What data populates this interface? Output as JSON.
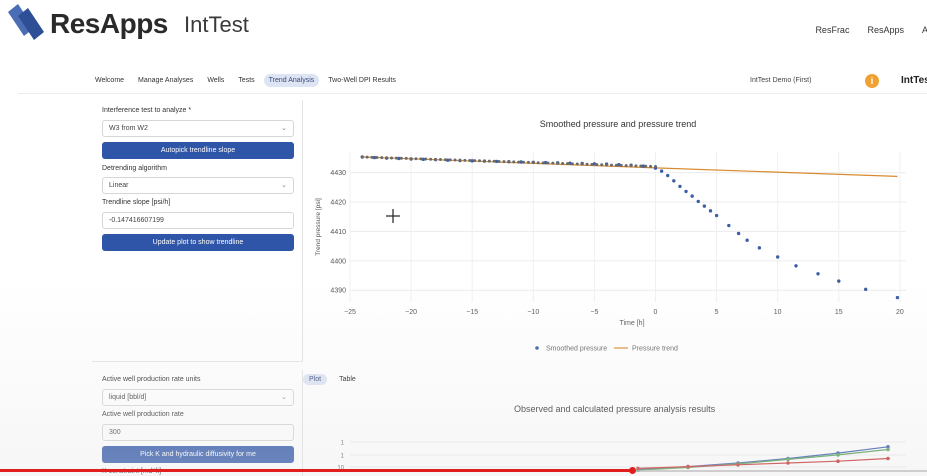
{
  "header": {
    "brand": "ResApps",
    "product": "IntTest",
    "links": [
      "ResFrac",
      "ResApps",
      "Ab"
    ]
  },
  "tabs": {
    "items": [
      "Welcome",
      "Manage Analyses",
      "Wells",
      "Tests",
      "Trend Analysis",
      "Two-Well DPI Results"
    ],
    "active_index": 4,
    "demo_label": "IntTest Demo (First)",
    "info_icon": "info-icon",
    "app_name": "IntTest"
  },
  "left_panel": {
    "test_label": "Interference test to analyze *",
    "test_value": "W3 from W2",
    "autopick_button": "Autopick trendline slope",
    "detrend_label": "Detrending algorithm",
    "detrend_value": "Linear",
    "slope_label": "Trendline slope [psi/h]",
    "slope_value": "-0.147416607199",
    "update_button": "Update plot to show trendline"
  },
  "bottom_panel": {
    "rate_units_label": "Active well production rate units",
    "rate_units_value": "liquid [bbl/d]",
    "rate_label": "Active well production rate",
    "rate_value": "300",
    "pick_button": "Pick K and hydraulic diffusivity for me",
    "cut_label": "K constraint [md*ft]",
    "tabs": [
      "Plot",
      "Table"
    ],
    "active_tab": 0
  },
  "chart_data": [
    {
      "type": "scatter",
      "title": "Smoothed pressure and pressure trend",
      "xlabel": "Time [h]",
      "ylabel": "Trend pressure [psi]",
      "xlim": [
        -25,
        20.5
      ],
      "ylim": [
        4386,
        4437
      ],
      "xticks": [
        -25,
        -20,
        -15,
        -10,
        -5,
        0,
        5,
        10,
        15,
        20
      ],
      "yticks": [
        4390,
        4400,
        4410,
        4420,
        4430
      ],
      "legend": "bottom",
      "grid": true,
      "series": [
        {
          "name": "Smoothed pressure",
          "kind": "scatter",
          "color": "#3b5fa6",
          "x": [
            -24,
            -23,
            -22,
            -21,
            -20,
            -19,
            -18,
            -17,
            -16,
            -15,
            -14,
            -13,
            -12,
            -11,
            -10,
            -9,
            -8,
            -7,
            -6,
            -5,
            -4,
            -3,
            -2,
            -1,
            0,
            0.5,
            1,
            1.5,
            2,
            2.5,
            3,
            3.5,
            4,
            4.5,
            5,
            6,
            6.8,
            7.5,
            8.5,
            10,
            11.5,
            13.3,
            15,
            17.2,
            19.8
          ],
          "y": [
            4435.3,
            4435.1,
            4434.9,
            4434.8,
            4434.6,
            4434.5,
            4434.4,
            4434.2,
            4434.1,
            4434.0,
            4433.9,
            4433.8,
            4433.7,
            4433.6,
            4433.5,
            4433.4,
            4433.3,
            4433.2,
            4433.1,
            4433.0,
            4432.9,
            4432.7,
            4432.5,
            4432.2,
            4431.5,
            4430.5,
            4429.0,
            4427.2,
            4425.3,
            4423.6,
            4422.0,
            4420.2,
            4418.6,
            4417.0,
            4415.4,
            4412.0,
            4409.3,
            4407.0,
            4404.4,
            4401.3,
            4398.3,
            4395.6,
            4393.1,
            4390.3,
            4387.5
          ]
        },
        {
          "name": "Pressure trend",
          "kind": "line",
          "color": "#d98a2e",
          "x": [
            -24,
            0,
            19.8
          ],
          "y": [
            4435.3,
            4431.6,
            4428.7
          ]
        }
      ]
    },
    {
      "type": "line",
      "title": "Observed and calculated pressure analysis results",
      "yticks": [
        "1",
        "1",
        "10"
      ],
      "series": [
        {
          "color": "#2e55a8",
          "x": [
            0,
            1,
            2,
            3,
            4,
            5
          ],
          "y": [
            0.3,
            0.6,
            1.0,
            1.5,
            2.1,
            2.8
          ]
        },
        {
          "color": "#4a9a4a",
          "x": [
            0,
            1,
            2,
            3,
            4,
            5
          ],
          "y": [
            0.2,
            0.5,
            0.9,
            1.4,
            1.9,
            2.5
          ]
        },
        {
          "color": "#c62828",
          "x": [
            0,
            1,
            2,
            3,
            4,
            5
          ],
          "y": [
            0.4,
            0.6,
            0.8,
            1.0,
            1.2,
            1.5
          ]
        }
      ]
    }
  ]
}
